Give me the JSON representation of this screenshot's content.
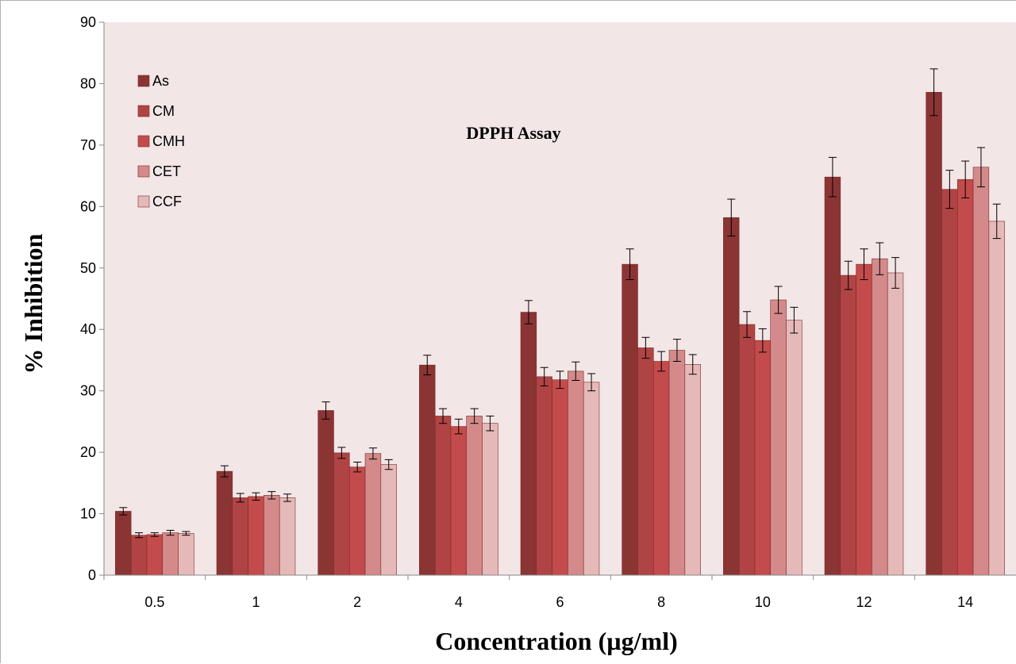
{
  "chart_data": {
    "type": "bar",
    "title": "DPPH Assay",
    "xlabel": "Concentration (µg/ml)",
    "ylabel": "% Inhibition",
    "ylim": [
      0,
      90
    ],
    "yticks": [
      "0",
      "10",
      "20",
      "30",
      "40",
      "50",
      "60",
      "70",
      "80",
      "90"
    ],
    "categories": [
      "0.5",
      "1",
      "2",
      "4",
      "6",
      "8",
      "10",
      "12",
      "14"
    ],
    "grid": false,
    "legend_position": "top-left",
    "background": "#f2e6e6",
    "series": [
      {
        "name": "As",
        "color": "#8b3434",
        "values": [
          10.4,
          16.9,
          26.8,
          34.2,
          42.8,
          50.6,
          58.2,
          64.8,
          78.6
        ],
        "errors": [
          0.6,
          0.9,
          1.4,
          1.6,
          1.9,
          2.5,
          3.0,
          3.2,
          3.8
        ]
      },
      {
        "name": "CM",
        "color": "#b04444",
        "values": [
          6.5,
          12.6,
          19.9,
          25.9,
          32.3,
          37.0,
          40.8,
          48.8,
          62.8
        ],
        "errors": [
          0.4,
          0.7,
          0.9,
          1.2,
          1.5,
          1.7,
          2.1,
          2.3,
          3.1
        ]
      },
      {
        "name": "CMH",
        "color": "#c44b4b",
        "values": [
          6.6,
          12.8,
          17.6,
          24.2,
          31.8,
          34.8,
          38.2,
          50.6,
          64.4
        ],
        "errors": [
          0.3,
          0.6,
          0.8,
          1.2,
          1.4,
          1.6,
          1.9,
          2.5,
          3.0
        ]
      },
      {
        "name": "CET",
        "color": "#d48a8a",
        "values": [
          6.9,
          13.0,
          19.8,
          25.9,
          33.2,
          36.6,
          44.8,
          51.5,
          66.4
        ],
        "errors": [
          0.4,
          0.6,
          0.9,
          1.2,
          1.5,
          1.8,
          2.2,
          2.6,
          3.2
        ]
      },
      {
        "name": "CCF",
        "color": "#e6b9b9",
        "values": [
          6.8,
          12.6,
          18.0,
          24.7,
          31.4,
          34.3,
          41.5,
          49.2,
          57.6
        ],
        "errors": [
          0.3,
          0.6,
          0.8,
          1.2,
          1.4,
          1.6,
          2.1,
          2.5,
          2.8
        ]
      }
    ]
  }
}
